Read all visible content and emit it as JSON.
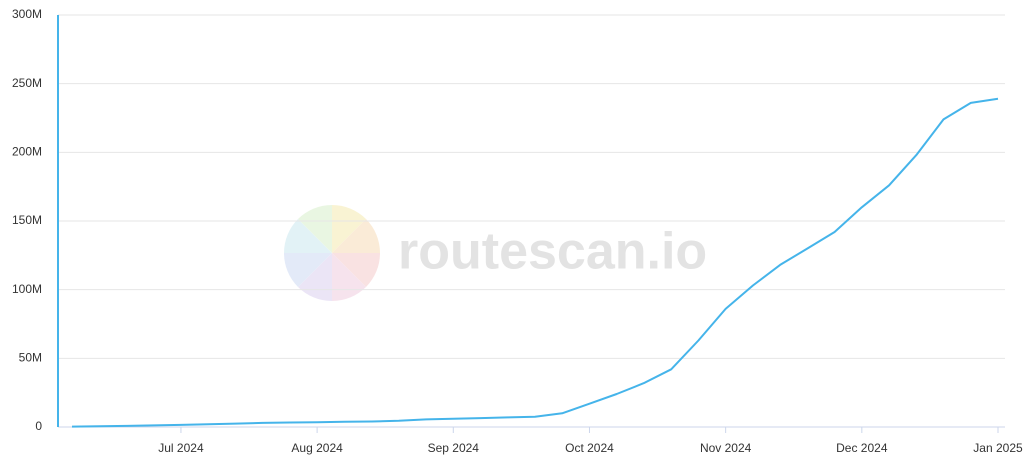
{
  "chart_data": {
    "type": "line",
    "watermark": "routescan.io",
    "categories": [
      null,
      null,
      null,
      null,
      "Jul 2024",
      null,
      null,
      null,
      null,
      "Aug 2024",
      null,
      null,
      null,
      null,
      "Sep 2024",
      null,
      null,
      null,
      null,
      "Oct 2024",
      null,
      null,
      null,
      null,
      "Nov 2024",
      null,
      null,
      null,
      null,
      "Dec 2024",
      null,
      null,
      null,
      null,
      "Jan 2025"
    ],
    "series": [
      {
        "color": "#45b4ea",
        "values": [
          300000,
          500000,
          800000,
          1200000,
          1500000,
          2000000,
          2500000,
          3000000,
          3300000,
          3500000,
          3800000,
          4000000,
          4500000,
          5500000,
          6000000,
          6500000,
          7000000,
          7500000,
          10000000,
          17000000,
          24000000,
          32000000,
          42000000,
          63000000,
          86000000,
          103000000,
          118000000,
          130000000,
          142000000,
          160000000,
          176000000,
          198000000,
          224000000,
          236000000,
          239000000
        ]
      }
    ],
    "ylim": [
      0,
      300000000
    ],
    "yticks": [
      0,
      {
        "value": 50000000,
        "label": "50M"
      },
      {
        "value": 100000000,
        "label": "100M"
      },
      {
        "value": 150000000,
        "label": "150M"
      },
      {
        "value": 200000000,
        "label": "200M"
      },
      {
        "value": 250000000,
        "label": "250M"
      },
      {
        "value": 300000000,
        "label": "300M"
      }
    ],
    "grid": true
  }
}
